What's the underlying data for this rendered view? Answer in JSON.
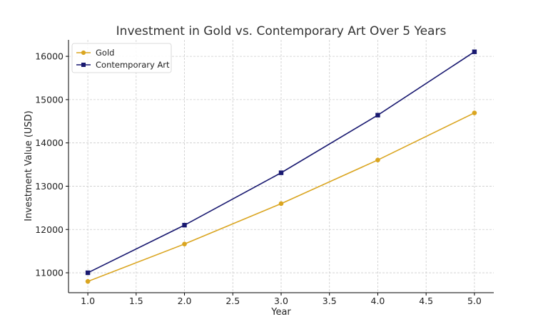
{
  "chart_data": {
    "type": "line",
    "title": "Investment in Gold vs. Contemporary Art Over 5 Years",
    "xlabel": "Year",
    "ylabel": "Investment Value (USD)",
    "xlim": [
      0.8,
      5.2
    ],
    "ylim": [
      10540,
      16380
    ],
    "x_ticks": [
      1.0,
      1.5,
      2.0,
      2.5,
      3.0,
      3.5,
      4.0,
      4.5,
      5.0
    ],
    "x_tick_labels": [
      "1.0",
      "1.5",
      "2.0",
      "2.5",
      "3.0",
      "3.5",
      "4.0",
      "4.5",
      "5.0"
    ],
    "y_ticks": [
      11000,
      12000,
      13000,
      14000,
      15000,
      16000
    ],
    "y_tick_labels": [
      "11000",
      "12000",
      "13000",
      "14000",
      "15000",
      "16000"
    ],
    "grid": true,
    "legend_position": "top-left",
    "x": [
      1.0,
      2.0,
      3.0,
      4.0,
      5.0
    ],
    "series": [
      {
        "name": "Gold",
        "values": [
          10800,
          11664,
          12597,
          13605,
          14693
        ],
        "color": "#DAA520",
        "marker": "circle"
      },
      {
        "name": "Contemporary Art",
        "values": [
          11000,
          12100,
          13310,
          14641,
          16105
        ],
        "color": "#191970",
        "marker": "square"
      }
    ]
  }
}
